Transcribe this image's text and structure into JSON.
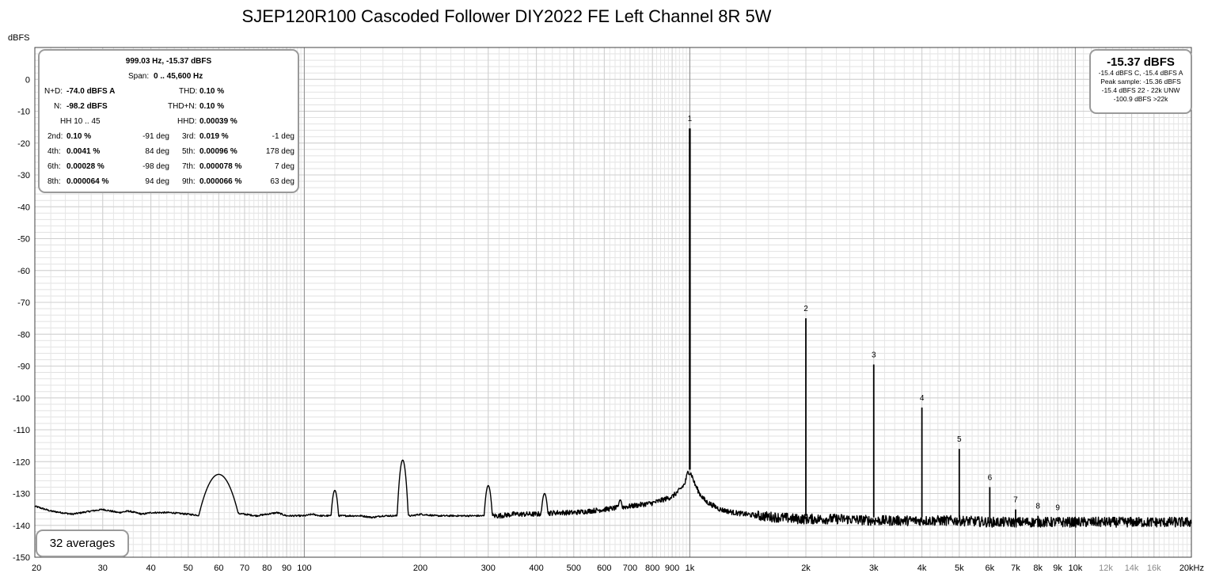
{
  "title": "SJEP120R100 Cascoded Follower DIY2022 FE Left Channel 8R 5W",
  "y_unit": "dBFS",
  "stats": {
    "header": "999.03 Hz, -15.37 dBFS",
    "span_label": "Span:",
    "span_value": "0 .. 45,600 Hz",
    "nd_label": "N+D:",
    "nd_value": "-74.0 dBFS A",
    "thd_label": "THD:",
    "thd_value": "0.10 %",
    "n_label": "N:",
    "n_value": "-98.2 dBFS",
    "thdn_label": "THD+N:",
    "thdn_value": "0.10 %",
    "hh_label": "HH 10 .. 45",
    "hhd_label": "HHD:",
    "hhd_value": "0.00039 %",
    "harmonics": [
      {
        "l1": "2nd:",
        "v1": "0.10 %",
        "p1": "-91 deg",
        "l2": "3rd:",
        "v2": "0.019 %",
        "p2": "-1 deg"
      },
      {
        "l1": "4th:",
        "v1": "0.0041 %",
        "p1": "84 deg",
        "l2": "5th:",
        "v2": "0.00096 %",
        "p2": "178 deg"
      },
      {
        "l1": "6th:",
        "v1": "0.00028 %",
        "p1": "-98 deg",
        "l2": "7th:",
        "v2": "0.000078 %",
        "p2": "7 deg"
      },
      {
        "l1": "8th:",
        "v1": "0.000064 %",
        "p1": "94 deg",
        "l2": "9th:",
        "v2": "0.000066 %",
        "p2": "63 deg"
      }
    ]
  },
  "level": {
    "main": "-15.37 dBFS",
    "lines": [
      "-15.4 dBFS C, -15.4 dBFS A",
      "Peak sample: -15.36 dBFS",
      "-15.4 dBFS 22 - 22k UNW",
      "-100.9 dBFS >22k"
    ]
  },
  "averages": "32 averages",
  "chart_data": {
    "type": "line",
    "title": "SJEP120R100 Cascoded Follower DIY2022 FE Left Channel 8R 5W",
    "xlabel": "",
    "ylabel": "dBFS",
    "x_scale": "log",
    "xlim": [
      20,
      20000
    ],
    "ylim": [
      -150,
      10
    ],
    "grid": true,
    "x_ticks": [
      {
        "v": 20,
        "t": "20"
      },
      {
        "v": 30,
        "t": "30"
      },
      {
        "v": 40,
        "t": "40"
      },
      {
        "v": 50,
        "t": "50"
      },
      {
        "v": 60,
        "t": "60"
      },
      {
        "v": 70,
        "t": "70"
      },
      {
        "v": 80,
        "t": "80"
      },
      {
        "v": 90,
        "t": "90"
      },
      {
        "v": 100,
        "t": "100"
      },
      {
        "v": 200,
        "t": "200"
      },
      {
        "v": 300,
        "t": "300"
      },
      {
        "v": 400,
        "t": "400"
      },
      {
        "v": 500,
        "t": "500"
      },
      {
        "v": 600,
        "t": "600"
      },
      {
        "v": 700,
        "t": "700"
      },
      {
        "v": 800,
        "t": "800"
      },
      {
        "v": 900,
        "t": "900"
      },
      {
        "v": 1000,
        "t": "1k"
      },
      {
        "v": 2000,
        "t": "2k"
      },
      {
        "v": 3000,
        "t": "3k"
      },
      {
        "v": 4000,
        "t": "4k"
      },
      {
        "v": 5000,
        "t": "5k"
      },
      {
        "v": 6000,
        "t": "6k"
      },
      {
        "v": 7000,
        "t": "7k"
      },
      {
        "v": 8000,
        "t": "8k"
      },
      {
        "v": 9000,
        "t": "9k"
      },
      {
        "v": 10000,
        "t": "10k"
      },
      {
        "v": 12000,
        "t": "12k"
      },
      {
        "v": 14000,
        "t": "14k"
      },
      {
        "v": 16000,
        "t": "16k"
      },
      {
        "v": 20000,
        "t": "20kHz"
      }
    ],
    "y_ticks": [
      0,
      -10,
      -20,
      -30,
      -40,
      -50,
      -60,
      -70,
      -80,
      -90,
      -100,
      -110,
      -120,
      -130,
      -140,
      -150
    ],
    "harmonic_peaks": [
      {
        "label": "1",
        "freq": 1000,
        "level": -15.4
      },
      {
        "label": "2",
        "freq": 2000,
        "level": -75
      },
      {
        "label": "3",
        "freq": 3000,
        "level": -89.5
      },
      {
        "label": "4",
        "freq": 4000,
        "level": -103
      },
      {
        "label": "5",
        "freq": 5000,
        "level": -116
      },
      {
        "label": "6",
        "freq": 6000,
        "level": -128
      },
      {
        "label": "7",
        "freq": 7000,
        "level": -135
      },
      {
        "label": "8",
        "freq": 8000,
        "level": -137
      },
      {
        "label": "9",
        "freq": 9000,
        "level": -137.5
      }
    ],
    "spurs": [
      {
        "freq": 60,
        "level": -124
      },
      {
        "freq": 120,
        "level": -129
      },
      {
        "freq": 180,
        "level": -119.5
      },
      {
        "freq": 300,
        "level": -127.5
      },
      {
        "freq": 420,
        "level": -130
      },
      {
        "freq": 660,
        "level": -132
      }
    ],
    "series": [
      {
        "x": [
          20,
          22,
          25,
          28,
          30,
          33,
          35,
          38,
          40,
          45,
          50,
          55,
          60,
          65,
          70,
          75,
          80,
          85,
          90,
          95,
          100,
          105,
          110,
          115,
          125,
          130,
          140,
          150,
          160,
          170,
          190,
          200,
          220,
          250,
          280,
          320,
          350,
          380,
          400,
          450,
          500,
          550,
          600,
          700,
          800,
          850,
          900,
          940,
          970,
          990,
          1010,
          1030,
          1060,
          1100,
          1200,
          1300,
          1500,
          1700,
          1900,
          2100,
          2500,
          3000,
          3500,
          4000,
          5000,
          6000,
          8000,
          10000,
          12000,
          15000,
          20000
        ],
        "y": [
          -134,
          -135.5,
          -136.5,
          -135.5,
          -135,
          -136,
          -135.5,
          -136.5,
          -136,
          -136,
          -136.5,
          -137,
          -137,
          -136,
          -136.5,
          -137,
          -136.5,
          -136,
          -137,
          -137,
          -137,
          -136.5,
          -137,
          -137,
          -137,
          -137,
          -137,
          -137.5,
          -137,
          -137,
          -137,
          -136.5,
          -137,
          -137,
          -137,
          -137,
          -136.5,
          -136.5,
          -136.5,
          -136,
          -136,
          -135.5,
          -135,
          -134,
          -133,
          -132,
          -131,
          -129,
          -127,
          -123,
          -124,
          -127,
          -130,
          -132.5,
          -135,
          -136,
          -137,
          -137.5,
          -138,
          -138,
          -138,
          -138.5,
          -138.5,
          -138.5,
          -138.5,
          -139,
          -139,
          -139,
          -139,
          -139,
          -139
        ]
      }
    ]
  }
}
